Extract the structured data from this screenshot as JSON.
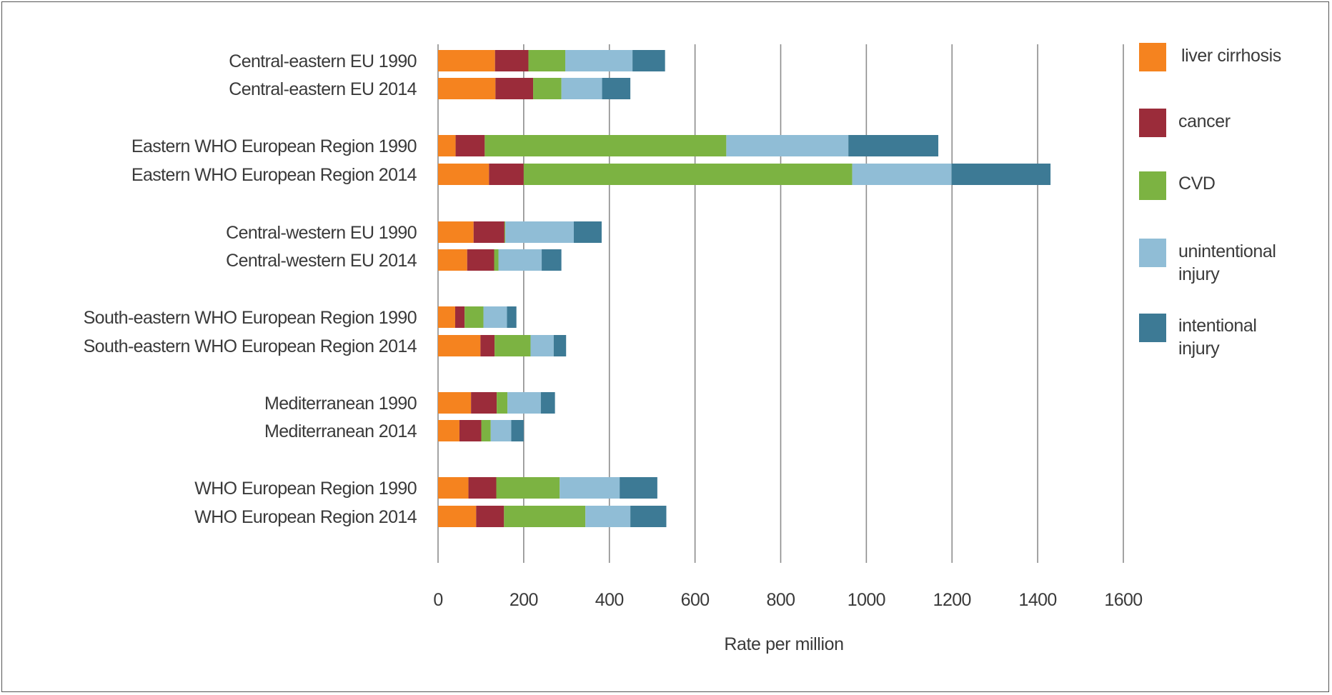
{
  "chart_data": {
    "type": "bar",
    "orientation": "horizontal",
    "stacked": true,
    "categories": [
      "Central-eastern EU 1990",
      "Central-eastern EU 2014",
      "Eastern WHO European Region 1990",
      "Eastern WHO European Region 2014",
      "Central-western EU 1990",
      "Central-western EU 2014",
      "South-eastern WHO European Region 1990",
      "South-eastern WHO European Region 2014",
      "Mediterranean 1990",
      "Mediterranean 2014",
      "WHO European Region 1990",
      "WHO European Region 2014"
    ],
    "series": [
      {
        "name": "liver cirrhosis",
        "color": "#f5831f",
        "values": [
          133,
          134,
          41,
          119,
          83,
          68,
          40,
          99,
          77,
          50,
          71,
          89
        ]
      },
      {
        "name": "cancer",
        "color": "#9b2c3a",
        "values": [
          78,
          88,
          68,
          81,
          72,
          63,
          22,
          33,
          60,
          51,
          65,
          65
        ]
      },
      {
        "name": "CVD",
        "color": "#7cb342",
        "values": [
          86,
          66,
          564,
          767,
          2,
          10,
          44,
          84,
          25,
          22,
          148,
          190
        ]
      },
      {
        "name": "unintentional injury",
        "color": "#90bdd6",
        "values": [
          157,
          95,
          285,
          232,
          160,
          101,
          55,
          54,
          78,
          48,
          140,
          105
        ]
      },
      {
        "name": "intentional injury",
        "color": "#3d7a95",
        "values": [
          76,
          66,
          210,
          231,
          65,
          46,
          22,
          29,
          33,
          29,
          88,
          84
        ]
      }
    ],
    "xlabel": "Rate per million",
    "ylabel": "",
    "xlim": [
      0,
      1600
    ],
    "xticks": [
      0,
      200,
      400,
      600,
      800,
      1000,
      1200,
      1400,
      1600
    ],
    "grid": "vertical",
    "legend": "right"
  }
}
